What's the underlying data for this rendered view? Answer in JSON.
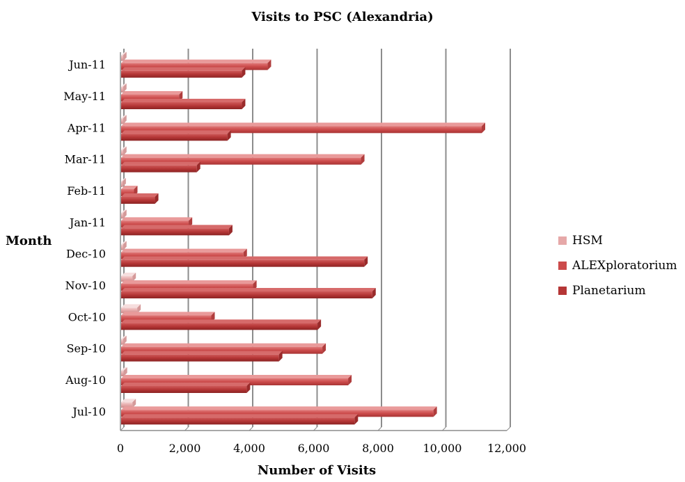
{
  "chart_data": {
    "type": "bar",
    "orientation": "horizontal",
    "title": "Visits to PSC (Alexandria)",
    "xlabel": "Number of Visits",
    "ylabel": "Month",
    "categories": [
      "Jul-10",
      "Aug-10",
      "Sep-10",
      "Oct-10",
      "Nov-10",
      "Dec-10",
      "Jan-11",
      "Feb-11",
      "Mar-11",
      "Apr-11",
      "May-11",
      "Jun-11"
    ],
    "xlim": [
      0,
      12000
    ],
    "xticks": [
      "0",
      "2,000",
      "4,000",
      "6,000",
      "8,000",
      "10,000",
      "12,000"
    ],
    "xtick_values": [
      0,
      2000,
      4000,
      6000,
      8000,
      10000,
      12000
    ],
    "grid": true,
    "legend_position": "right",
    "series": [
      {
        "name": "HSM",
        "color": "#e6a8a8",
        "values": [
          350,
          80,
          60,
          500,
          350,
          60,
          60,
          40,
          60,
          60,
          60,
          60
        ]
      },
      {
        "name": "ALEXploratorium",
        "color": "#cc4b4b",
        "values": [
          9700,
          7050,
          6250,
          2800,
          4100,
          3800,
          2100,
          400,
          7450,
          11200,
          1800,
          4550
        ]
      },
      {
        "name": "Planetarium",
        "color": "#b53636",
        "values": [
          7250,
          3900,
          4900,
          6100,
          7800,
          7550,
          3350,
          1050,
          2350,
          3300,
          3750,
          3750
        ]
      }
    ]
  }
}
